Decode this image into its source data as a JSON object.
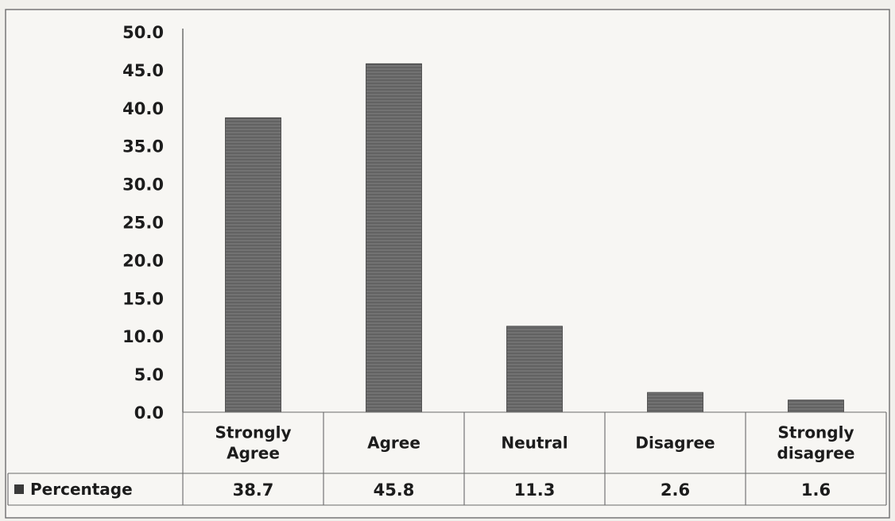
{
  "chart_data": {
    "type": "bar",
    "categories": [
      [
        "Strongly",
        "Agree"
      ],
      [
        "Agree"
      ],
      [
        "Neutral"
      ],
      [
        "Disagree"
      ],
      [
        "Strongly",
        "disagree"
      ]
    ],
    "series": [
      {
        "name": "Percentage",
        "values": [
          38.7,
          45.8,
          11.3,
          2.6,
          1.6
        ],
        "value_labels": [
          "38.7",
          "45.8",
          "11.3",
          "2.6",
          "1.6"
        ]
      }
    ],
    "ylim": [
      0,
      50
    ],
    "yticks": [
      "0.0",
      "5.0",
      "10.0",
      "15.0",
      "20.0",
      "25.0",
      "30.0",
      "35.0",
      "40.0",
      "45.0",
      "50.0"
    ],
    "grid": false,
    "data_table": true,
    "colors": {
      "bar": "#6b6b6b",
      "legend_marker": "#3a3a3a"
    }
  }
}
